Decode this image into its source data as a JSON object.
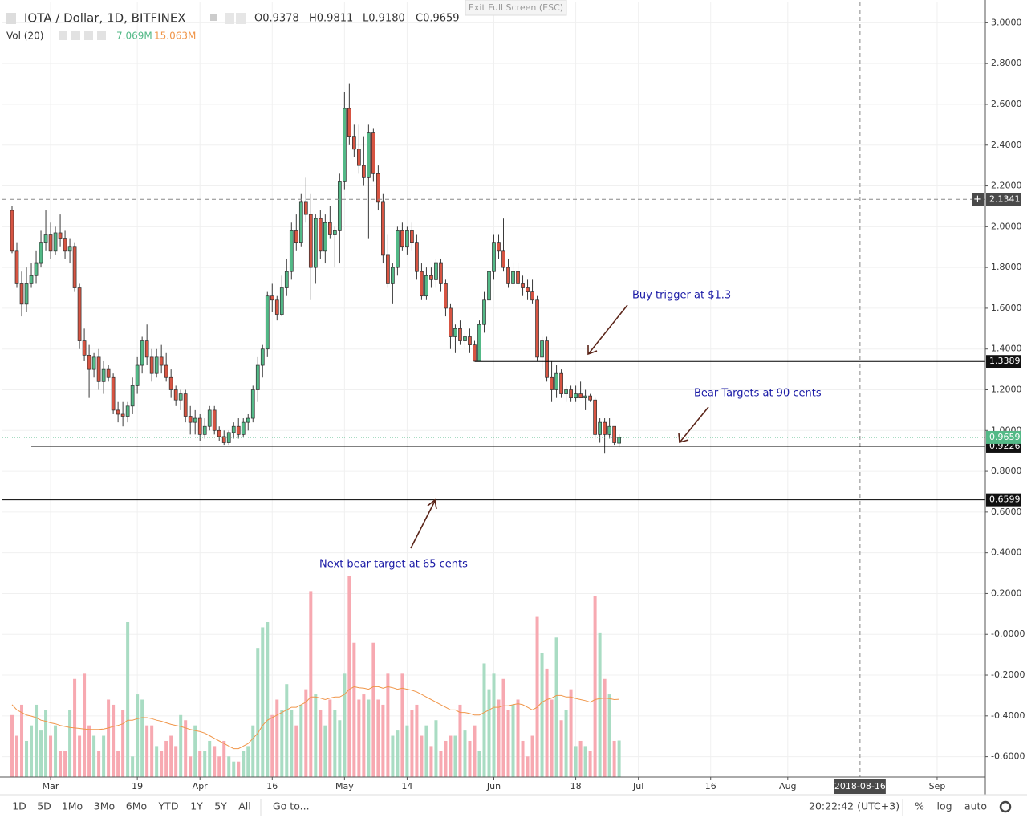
{
  "chart_data": {
    "type": "candlestick",
    "title": "IOTA / Dollar, 1D, BITFINEX",
    "ohlc_legend": [
      "O0.9378",
      "H0.9811",
      "L0.9180",
      "C0.9659"
    ],
    "up_color": "#53b987",
    "down_color": "#d75442",
    "x": [
      "2018-02-21",
      "2018-02-22",
      "2018-02-23",
      "2018-02-24",
      "2018-02-25",
      "2018-02-26",
      "2018-02-27",
      "2018-02-28",
      "2018-03-01",
      "2018-03-02",
      "2018-03-03",
      "2018-03-04",
      "2018-03-05",
      "2018-03-06",
      "2018-03-07",
      "2018-03-08",
      "2018-03-09",
      "2018-03-10",
      "2018-03-11",
      "2018-03-12",
      "2018-03-13",
      "2018-03-14",
      "2018-03-15",
      "2018-03-16",
      "2018-03-17",
      "2018-03-18",
      "2018-03-19",
      "2018-03-20",
      "2018-03-21",
      "2018-03-22",
      "2018-03-23",
      "2018-03-24",
      "2018-03-25",
      "2018-03-26",
      "2018-03-27",
      "2018-03-28",
      "2018-03-29",
      "2018-03-30",
      "2018-03-31",
      "2018-04-01",
      "2018-04-02",
      "2018-04-03",
      "2018-04-04",
      "2018-04-05",
      "2018-04-06",
      "2018-04-07",
      "2018-04-08",
      "2018-04-09",
      "2018-04-10",
      "2018-04-11",
      "2018-04-12",
      "2018-04-13",
      "2018-04-14",
      "2018-04-15",
      "2018-04-16",
      "2018-04-17",
      "2018-04-18",
      "2018-04-19",
      "2018-04-20",
      "2018-04-21",
      "2018-04-22",
      "2018-04-23",
      "2018-04-24",
      "2018-04-25",
      "2018-04-26",
      "2018-04-27",
      "2018-04-28",
      "2018-04-29",
      "2018-04-30",
      "2018-05-01",
      "2018-05-02",
      "2018-05-03",
      "2018-05-04",
      "2018-05-05",
      "2018-05-06",
      "2018-05-07",
      "2018-05-08",
      "2018-05-09",
      "2018-05-10",
      "2018-05-11",
      "2018-05-12",
      "2018-05-13",
      "2018-05-14",
      "2018-05-15",
      "2018-05-16",
      "2018-05-17",
      "2018-05-18",
      "2018-05-19",
      "2018-05-20",
      "2018-05-21",
      "2018-05-22",
      "2018-05-23",
      "2018-05-24",
      "2018-05-25",
      "2018-05-26",
      "2018-05-27",
      "2018-05-28",
      "2018-05-29",
      "2018-05-30",
      "2018-05-31",
      "2018-06-01",
      "2018-06-02",
      "2018-06-03",
      "2018-06-04",
      "2018-06-05",
      "2018-06-06",
      "2018-06-07",
      "2018-06-08",
      "2018-06-09",
      "2018-06-10",
      "2018-06-11",
      "2018-06-12",
      "2018-06-13",
      "2018-06-14",
      "2018-06-15",
      "2018-06-16",
      "2018-06-17",
      "2018-06-18",
      "2018-06-19",
      "2018-06-20",
      "2018-06-21",
      "2018-06-22",
      "2018-06-23",
      "2018-06-24",
      "2018-06-25",
      "2018-06-26",
      "2018-06-27"
    ],
    "open": [
      2.08,
      1.88,
      1.72,
      1.62,
      1.72,
      1.76,
      1.82,
      1.92,
      1.96,
      1.88,
      1.97,
      1.94,
      1.88,
      1.9,
      1.7,
      1.44,
      1.37,
      1.3,
      1.36,
      1.24,
      1.3,
      1.26,
      1.1,
      1.08,
      1.07,
      1.12,
      1.22,
      1.32,
      1.44,
      1.36,
      1.28,
      1.36,
      1.32,
      1.26,
      1.2,
      1.15,
      1.18,
      1.07,
      1.04,
      1.06,
      0.98,
      1.02,
      1.1,
      1.0,
      0.97,
      0.94,
      0.99,
      1.02,
      0.98,
      1.04,
      1.06,
      1.2,
      1.32,
      1.4,
      1.66,
      1.64,
      1.57,
      1.7,
      1.78,
      1.98,
      1.92,
      2.12,
      2.06,
      1.8,
      2.04,
      1.88,
      2.02,
      1.96,
      1.98,
      2.22,
      2.58,
      2.44,
      2.38,
      2.3,
      2.24,
      2.46,
      2.26,
      2.12,
      1.86,
      1.72,
      1.8,
      1.98,
      1.9,
      1.98,
      1.92,
      1.78,
      1.66,
      1.76,
      1.74,
      1.82,
      1.72,
      1.6,
      1.46,
      1.5,
      1.44,
      1.46,
      1.42,
      1.34,
      1.52,
      1.64,
      1.78,
      1.92,
      1.88,
      1.8,
      1.72,
      1.78,
      1.72,
      1.7,
      1.68,
      1.64,
      1.36,
      1.44,
      1.26,
      1.2,
      1.28,
      1.18,
      1.2,
      1.16,
      1.18,
      1.16,
      1.17,
      1.15,
      0.98,
      1.04,
      0.98,
      1.02,
      0.9378
    ],
    "high": [
      2.1,
      1.92,
      1.78,
      1.8,
      1.82,
      1.88,
      1.98,
      2.08,
      2.02,
      2.0,
      2.06,
      1.98,
      1.94,
      1.92,
      1.72,
      1.5,
      1.42,
      1.38,
      1.4,
      1.34,
      1.32,
      1.28,
      1.14,
      1.14,
      1.14,
      1.26,
      1.36,
      1.46,
      1.52,
      1.4,
      1.4,
      1.42,
      1.38,
      1.3,
      1.22,
      1.2,
      1.2,
      1.12,
      1.1,
      1.08,
      1.06,
      1.12,
      1.12,
      1.02,
      1.0,
      1.0,
      1.04,
      1.06,
      1.06,
      1.08,
      1.22,
      1.36,
      1.42,
      1.68,
      1.72,
      1.66,
      1.76,
      1.84,
      2.02,
      2.06,
      2.16,
      2.24,
      2.16,
      2.06,
      2.08,
      2.06,
      2.1,
      2.0,
      2.26,
      2.66,
      2.7,
      2.5,
      2.5,
      2.44,
      2.5,
      2.48,
      2.3,
      2.16,
      1.96,
      1.82,
      2.0,
      2.02,
      2.0,
      2.02,
      1.96,
      1.82,
      1.8,
      1.8,
      1.84,
      1.84,
      1.74,
      1.62,
      1.52,
      1.54,
      1.48,
      1.5,
      1.44,
      1.54,
      1.68,
      1.82,
      1.96,
      1.96,
      2.04,
      1.84,
      1.82,
      1.82,
      1.76,
      1.74,
      1.74,
      1.66,
      1.46,
      1.46,
      1.34,
      1.32,
      1.3,
      1.22,
      1.22,
      1.22,
      1.24,
      1.2,
      1.18,
      1.16,
      1.06,
      1.06,
      1.06,
      1.02,
      0.9811
    ],
    "low": [
      1.87,
      1.7,
      1.56,
      1.58,
      1.7,
      1.72,
      1.8,
      1.88,
      1.84,
      1.86,
      1.9,
      1.84,
      1.82,
      1.68,
      1.4,
      1.34,
      1.16,
      1.26,
      1.2,
      1.18,
      1.24,
      1.08,
      1.04,
      1.02,
      1.04,
      1.08,
      1.18,
      1.28,
      1.32,
      1.24,
      1.26,
      1.28,
      1.24,
      1.16,
      1.12,
      1.1,
      1.04,
      0.98,
      0.98,
      0.95,
      0.96,
      1.0,
      0.98,
      0.95,
      0.93,
      0.93,
      0.96,
      0.96,
      0.97,
      1.0,
      1.04,
      1.14,
      1.26,
      1.36,
      1.58,
      1.54,
      1.56,
      1.66,
      1.74,
      1.88,
      1.9,
      2.02,
      1.64,
      1.72,
      1.84,
      1.82,
      1.94,
      1.8,
      1.82,
      2.18,
      2.4,
      2.34,
      2.26,
      2.2,
      1.94,
      2.22,
      2.08,
      1.82,
      1.7,
      1.62,
      1.76,
      1.88,
      1.86,
      1.88,
      1.74,
      1.64,
      1.64,
      1.7,
      1.7,
      1.68,
      1.56,
      1.4,
      1.38,
      1.42,
      1.4,
      1.38,
      1.34,
      1.34,
      1.48,
      1.6,
      1.74,
      1.84,
      1.78,
      1.7,
      1.7,
      1.7,
      1.66,
      1.64,
      1.62,
      1.34,
      1.3,
      1.24,
      1.14,
      1.16,
      1.16,
      1.14,
      1.14,
      1.14,
      1.16,
      1.1,
      1.14,
      0.96,
      0.94,
      0.89,
      0.96,
      0.93,
      0.918
    ],
    "close": [
      1.88,
      1.72,
      1.62,
      1.72,
      1.76,
      1.82,
      1.92,
      1.96,
      1.88,
      1.97,
      1.94,
      1.88,
      1.9,
      1.7,
      1.44,
      1.37,
      1.3,
      1.36,
      1.24,
      1.3,
      1.26,
      1.1,
      1.08,
      1.07,
      1.12,
      1.22,
      1.32,
      1.44,
      1.36,
      1.28,
      1.36,
      1.32,
      1.26,
      1.2,
      1.15,
      1.18,
      1.07,
      1.04,
      1.06,
      0.98,
      1.02,
      1.1,
      1.0,
      0.97,
      0.94,
      0.99,
      1.02,
      0.98,
      1.04,
      1.06,
      1.2,
      1.32,
      1.4,
      1.66,
      1.64,
      1.57,
      1.7,
      1.78,
      1.98,
      1.92,
      2.12,
      2.06,
      1.8,
      2.04,
      1.88,
      2.02,
      1.96,
      1.98,
      2.22,
      2.58,
      2.44,
      2.38,
      2.3,
      2.24,
      2.46,
      2.26,
      2.12,
      1.86,
      1.72,
      1.8,
      1.98,
      1.9,
      1.98,
      1.92,
      1.78,
      1.66,
      1.76,
      1.74,
      1.82,
      1.72,
      1.6,
      1.46,
      1.5,
      1.44,
      1.46,
      1.42,
      1.34,
      1.52,
      1.64,
      1.78,
      1.92,
      1.88,
      1.8,
      1.72,
      1.78,
      1.72,
      1.7,
      1.68,
      1.64,
      1.36,
      1.44,
      1.26,
      1.2,
      1.28,
      1.18,
      1.2,
      1.16,
      1.18,
      1.16,
      1.17,
      1.15,
      0.98,
      1.04,
      0.98,
      1.02,
      0.94,
      0.9659
    ],
    "volume": {
      "name": "Vol (20)",
      "legend_values": [
        "7.069M",
        "15.063M"
      ],
      "up_color": "#a9dcc3",
      "down_color": "#f7a9b1",
      "ylim": [
        0,
        150
      ],
      "values": [
        12,
        8,
        14,
        7,
        10,
        14,
        9,
        13,
        8,
        10,
        5,
        5,
        13,
        19,
        8,
        20,
        10,
        8,
        5,
        8,
        15,
        14,
        5,
        13,
        30,
        4,
        16,
        15,
        10,
        10,
        6,
        5,
        7,
        8,
        6,
        12,
        11,
        4,
        10,
        5,
        5,
        7,
        6,
        4,
        7,
        4,
        3,
        3,
        5,
        6,
        10,
        25,
        29,
        30,
        12,
        15,
        13,
        18,
        13,
        10,
        14,
        17,
        36,
        16,
        13,
        10,
        15,
        13,
        11,
        20,
        39,
        26,
        15,
        16,
        15,
        26,
        15,
        14,
        20,
        8,
        9,
        20,
        10,
        13,
        14,
        8,
        10,
        6,
        11,
        5,
        7,
        8,
        8,
        14,
        9,
        7,
        10,
        5,
        22,
        17,
        20,
        15,
        19,
        13,
        14,
        15,
        7,
        4,
        8,
        31,
        24,
        21,
        15,
        27,
        11,
        13,
        17,
        6,
        7,
        6,
        5,
        35,
        28,
        19,
        16,
        7,
        7.069
      ],
      "ma": {
        "color": "#f0964a",
        "values": [
          14,
          13,
          12.5,
          12,
          11.8,
          11.5,
          11,
          10.8,
          10.5,
          10.3,
          10,
          9.8,
          9.6,
          9.5,
          9.4,
          9.3,
          9.2,
          9.2,
          9.2,
          9.3,
          9.5,
          9.8,
          10,
          10.3,
          11,
          11,
          11.3,
          11.5,
          11.5,
          11.3,
          11,
          10.8,
          10.5,
          10.2,
          10,
          9.8,
          9.5,
          9.2,
          9,
          8.8,
          8.5,
          8,
          7.5,
          7,
          6.5,
          6,
          5.5,
          5.5,
          6,
          6.5,
          7.5,
          8.5,
          10,
          11,
          11.5,
          12,
          12.5,
          13,
          13.5,
          13.5,
          14,
          14.5,
          15.5,
          15.5,
          15.3,
          15,
          15.3,
          15.5,
          15.5,
          16,
          17,
          17.5,
          17.3,
          17.2,
          17,
          17.5,
          17.5,
          17.2,
          17.5,
          17.3,
          17,
          17.2,
          17,
          16.8,
          16.5,
          16,
          15.5,
          15,
          14.5,
          14,
          13.5,
          13,
          13,
          12.5,
          12.5,
          12.3,
          12,
          12,
          12.5,
          13,
          13.5,
          13.5,
          13.8,
          13.8,
          14,
          14.2,
          14,
          13.5,
          13,
          13.5,
          14.5,
          15,
          15.3,
          15.8,
          15.8,
          15.5,
          15.5,
          15.2,
          15,
          14.8,
          14.5,
          15,
          15.2,
          15.3,
          15.2,
          15,
          15.063
        ]
      }
    },
    "xlim": [
      "2018-02-19",
      "2018-09-11"
    ],
    "xticks": [
      {
        "value": "2018-03-01",
        "label": "Mar"
      },
      {
        "value": "2018-03-19",
        "label": "19"
      },
      {
        "value": "2018-04-01",
        "label": "Apr"
      },
      {
        "value": "2018-04-16",
        "label": "16"
      },
      {
        "value": "2018-05-01",
        "label": "May"
      },
      {
        "value": "2018-05-14",
        "label": "14"
      },
      {
        "value": "2018-06-01",
        "label": "Jun"
      },
      {
        "value": "2018-06-18",
        "label": "18"
      },
      {
        "value": "2018-07-01",
        "label": "Jul"
      },
      {
        "value": "2018-07-16",
        "label": "16"
      },
      {
        "value": "2018-08-01",
        "label": "Aug"
      },
      {
        "value": "2018-09-01",
        "label": "Sep"
      }
    ],
    "crosshair_x": "2018-08-16",
    "ylim": [
      -0.7,
      3.1
    ],
    "yticks": [
      {
        "value": 3,
        "label": "3.0000"
      },
      {
        "value": 2.8,
        "label": "2.8000"
      },
      {
        "value": 2.6,
        "label": "2.6000"
      },
      {
        "value": 2.4,
        "label": "2.4000"
      },
      {
        "value": 2.2,
        "label": "2.2000"
      },
      {
        "value": 2,
        "label": "2.0000"
      },
      {
        "value": 1.8,
        "label": "1.8000"
      },
      {
        "value": 1.6,
        "label": "1.6000"
      },
      {
        "value": 1.4,
        "label": "1.4000"
      },
      {
        "value": 1.2,
        "label": "1.2000"
      },
      {
        "value": 1,
        "label": "1.0000"
      },
      {
        "value": 0.8,
        "label": "0.8000"
      },
      {
        "value": 0.6,
        "label": "0.6000"
      },
      {
        "value": 0.4,
        "label": "0.4000"
      },
      {
        "value": 0.2,
        "label": "0.2000"
      },
      {
        "value": 0,
        "label": "-0.0000"
      },
      {
        "value": -0.2,
        "label": "-0.2000"
      },
      {
        "value": -0.4,
        "label": "-0.4000"
      },
      {
        "value": -0.6,
        "label": "-0.6000"
      }
    ],
    "hlines": [
      {
        "value": 2.1341,
        "dashed": true
      },
      {
        "value": 1.3389,
        "start": "2018-05-28"
      },
      {
        "value": 0.9226,
        "start": "2018-02-25"
      },
      {
        "value": 0.6599
      }
    ],
    "annotations": [
      "Buy trigger at $1.3",
      "Bear Targets at 90 cents",
      "Next bear target at 65 cents"
    ]
  },
  "toolbar": {
    "ranges": [
      "1D",
      "5D",
      "1Mo",
      "3Mo",
      "6Mo",
      "YTD",
      "1Y",
      "5Y",
      "All"
    ],
    "goto": "Go to...",
    "clock": "20:22:42 (UTC+3)",
    "options": [
      "%",
      "log",
      "auto"
    ]
  },
  "exit_fullscreen": "Exit Full Screen (ESC)"
}
